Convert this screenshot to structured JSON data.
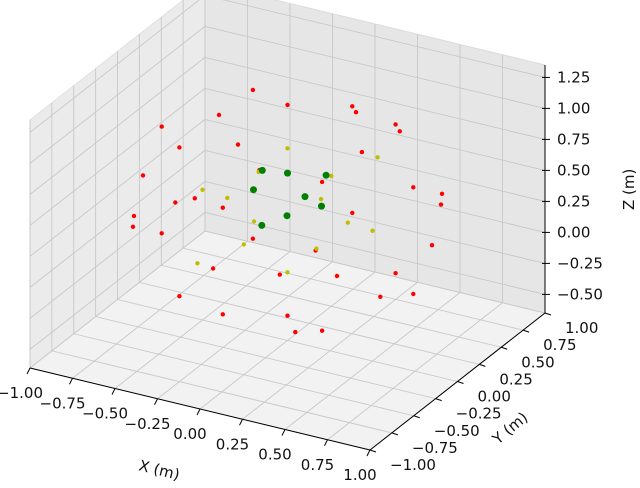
{
  "chart_data": {
    "type": "scatter",
    "projection": "3d",
    "grid": true,
    "xlabel": "X (m)",
    "ylabel": "Y (m)",
    "zlabel": "Z (m)",
    "xlim": [
      -1.0,
      1.0
    ],
    "ylim": [
      -1.0,
      1.0
    ],
    "zlim": [
      -0.65,
      1.35
    ],
    "xticks": [
      "−1.00",
      "−0.75",
      "−0.50",
      "−0.25",
      "0.00",
      "0.25",
      "0.50",
      "0.75",
      "1.00"
    ],
    "yticks": [
      "−1.00",
      "−0.75",
      "−0.50",
      "−0.25",
      "0.00",
      "0.25",
      "0.50",
      "0.75",
      "1.00"
    ],
    "zticks": [
      "−0.50",
      "−0.25",
      "0.00",
      "0.25",
      "0.50",
      "0.75",
      "1.00",
      "1.25"
    ],
    "series": [
      {
        "color": "#ff0000",
        "points": [
          [
            0.85,
            0,
            0.4
          ],
          [
            -0.85,
            0,
            0.4
          ],
          [
            0,
            0.85,
            0.4
          ],
          [
            0,
            -0.85,
            0.4
          ],
          [
            0,
            0,
            1.25
          ],
          [
            0,
            0,
            -0.45
          ],
          [
            0.6,
            0.6,
            0.4
          ],
          [
            -0.6,
            -0.6,
            0.4
          ],
          [
            0.6,
            -0.6,
            0.4
          ],
          [
            -0.6,
            0.6,
            0.4
          ],
          [
            0.42,
            0.42,
            1.0
          ],
          [
            -0.42,
            0.42,
            1.0
          ],
          [
            0.42,
            -0.42,
            1.0
          ],
          [
            -0.42,
            -0.42,
            1.0
          ],
          [
            0.42,
            0.42,
            -0.2
          ],
          [
            -0.42,
            0.42,
            -0.2
          ],
          [
            0.42,
            -0.42,
            -0.2
          ],
          [
            -0.42,
            -0.42,
            -0.2
          ],
          [
            0.74,
            0,
            0.83
          ],
          [
            -0.74,
            0,
            0.83
          ],
          [
            0,
            0.74,
            0.83
          ],
          [
            0,
            -0.74,
            0.83
          ],
          [
            0.74,
            0,
            -0.03
          ],
          [
            -0.74,
            0,
            -0.03
          ],
          [
            0,
            0.74,
            -0.03
          ],
          [
            0,
            -0.74,
            -0.03
          ],
          [
            0.3,
            0.7,
            0.75
          ],
          [
            -0.3,
            -0.7,
            0.75
          ],
          [
            0.7,
            -0.3,
            0.1
          ],
          [
            -0.7,
            0.3,
            0.1
          ],
          [
            0.2,
            -0.3,
            -0.35
          ],
          [
            -0.2,
            0.3,
            -0.35
          ],
          [
            0.3,
            0.2,
            1.18
          ],
          [
            -0.3,
            -0.2,
            1.18
          ],
          [
            0.8,
            0.2,
            0.6
          ],
          [
            -0.8,
            -0.2,
            0.2
          ],
          [
            0.5,
            -0.65,
            0.6
          ],
          [
            -0.5,
            0.65,
            0.2
          ]
        ]
      },
      {
        "color": "#bfbf00",
        "points": [
          [
            0.5,
            0,
            0.4
          ],
          [
            -0.5,
            0,
            0.4
          ],
          [
            0,
            0.5,
            0.4
          ],
          [
            0,
            -0.5,
            0.4
          ],
          [
            0.35,
            0.35,
            0.75
          ],
          [
            -0.35,
            -0.35,
            0.05
          ],
          [
            0.35,
            -0.35,
            0.4
          ],
          [
            -0.35,
            0.35,
            0.4
          ],
          [
            0,
            0,
            0.9
          ],
          [
            0,
            0,
            -0.1
          ],
          [
            0.3,
            -0.2,
            0.7
          ],
          [
            -0.3,
            0.2,
            0.1
          ],
          [
            0.2,
            0.3,
            0.2
          ],
          [
            -0.2,
            -0.3,
            0.6
          ]
        ]
      },
      {
        "color": "#008000",
        "points": [
          [
            0.2,
            0,
            0.5
          ],
          [
            -0.2,
            0.1,
            0.6
          ],
          [
            0,
            0.2,
            0.4
          ],
          [
            0.1,
            -0.2,
            0.5
          ],
          [
            0,
            0,
            0.7
          ],
          [
            -0.1,
            -0.1,
            0.3
          ],
          [
            0.15,
            0.15,
            0.65
          ],
          [
            -0.2,
            0,
            0.5
          ]
        ]
      }
    ]
  }
}
